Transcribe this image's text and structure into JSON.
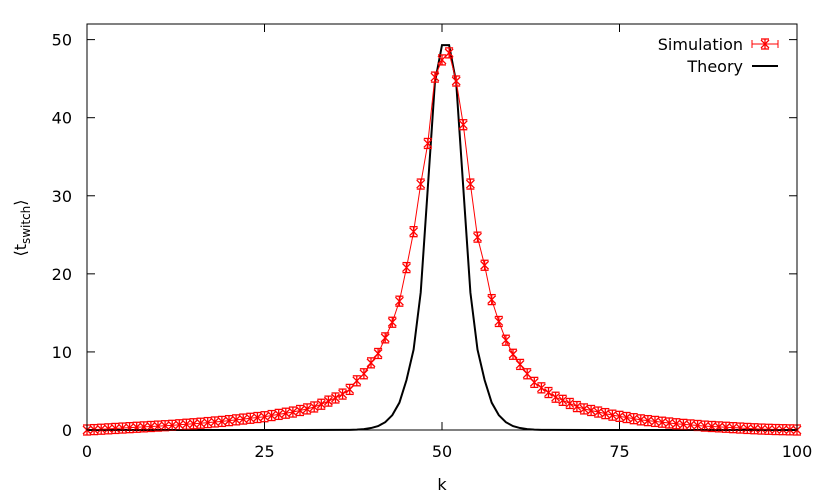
{
  "chart_data": {
    "type": "line",
    "xlabel": "k",
    "ylabel": "⟨t",
    "ylabel_sub": "switch",
    "ylabel_close": "⟩",
    "xlim": [
      0,
      100
    ],
    "ylim": [
      0,
      52
    ],
    "xticks": [
      0,
      25,
      50,
      75,
      100
    ],
    "yticks": [
      0,
      10,
      20,
      30,
      40,
      50
    ],
    "grid": false,
    "legend_position": "top-right",
    "series": [
      {
        "name": "Simulation",
        "color": "#ff0000",
        "style": "line with x markers and error bars",
        "x": [
          0,
          1,
          2,
          3,
          4,
          5,
          6,
          7,
          8,
          9,
          10,
          11,
          12,
          13,
          14,
          15,
          16,
          17,
          18,
          19,
          20,
          21,
          22,
          23,
          24,
          25,
          26,
          27,
          28,
          29,
          30,
          31,
          32,
          33,
          34,
          35,
          36,
          37,
          38,
          39,
          40,
          41,
          42,
          43,
          44,
          45,
          46,
          47,
          48,
          49,
          50,
          51,
          52,
          53,
          54,
          55,
          56,
          57,
          58,
          59,
          60,
          61,
          62,
          63,
          64,
          65,
          66,
          67,
          68,
          69,
          70,
          71,
          72,
          73,
          74,
          75,
          76,
          77,
          78,
          79,
          80,
          81,
          82,
          83,
          84,
          85,
          86,
          87,
          88,
          89,
          90,
          91,
          92,
          93,
          94,
          95,
          96,
          97,
          98,
          99,
          100
        ],
        "y": [
          0,
          0.05,
          0.1,
          0.15,
          0.2,
          0.25,
          0.3,
          0.35,
          0.4,
          0.45,
          0.5,
          0.55,
          0.6,
          0.67,
          0.74,
          0.8,
          0.87,
          0.95,
          1.03,
          1.1,
          1.2,
          1.3,
          1.4,
          1.5,
          1.6,
          1.7,
          1.85,
          2.0,
          2.15,
          2.3,
          2.5,
          2.7,
          2.95,
          3.3,
          3.7,
          4.1,
          4.6,
          5.2,
          6.3,
          7.2,
          8.6,
          9.8,
          11.8,
          13.8,
          16.5,
          20.8,
          25.4,
          31.5,
          36.7,
          45.2,
          47.4,
          48.3,
          44.7,
          39.1,
          31.5,
          24.7,
          21.1,
          16.7,
          13.9,
          11.5,
          9.7,
          8.4,
          7.2,
          6.1,
          5.4,
          4.8,
          4.2,
          3.8,
          3.4,
          3.0,
          2.7,
          2.5,
          2.3,
          2.1,
          1.9,
          1.75,
          1.6,
          1.45,
          1.3,
          1.2,
          1.1,
          1.0,
          0.9,
          0.8,
          0.72,
          0.65,
          0.58,
          0.5,
          0.45,
          0.4,
          0.35,
          0.3,
          0.25,
          0.2,
          0.16,
          0.12,
          0.09,
          0.06,
          0.04,
          0.02,
          0
        ]
      },
      {
        "name": "Theory",
        "color": "#000000",
        "style": "line",
        "x": [
          0,
          30,
          36,
          37,
          38,
          39,
          40,
          41,
          42,
          43,
          44,
          45,
          46,
          47,
          48,
          49,
          50,
          51,
          52,
          53,
          54,
          55,
          56,
          57,
          58,
          59,
          60,
          61,
          62,
          63,
          64,
          65,
          71,
          100
        ],
        "y": [
          0,
          0,
          0.01,
          0.02,
          0.05,
          0.12,
          0.25,
          0.5,
          1.0,
          1.9,
          3.5,
          6.4,
          10.3,
          17.6,
          31,
          44.5,
          49.3,
          49.3,
          44.5,
          31,
          17.6,
          10.3,
          6.4,
          3.5,
          1.9,
          1.0,
          0.5,
          0.25,
          0.12,
          0.05,
          0.02,
          0.01,
          0,
          0
        ]
      }
    ]
  }
}
